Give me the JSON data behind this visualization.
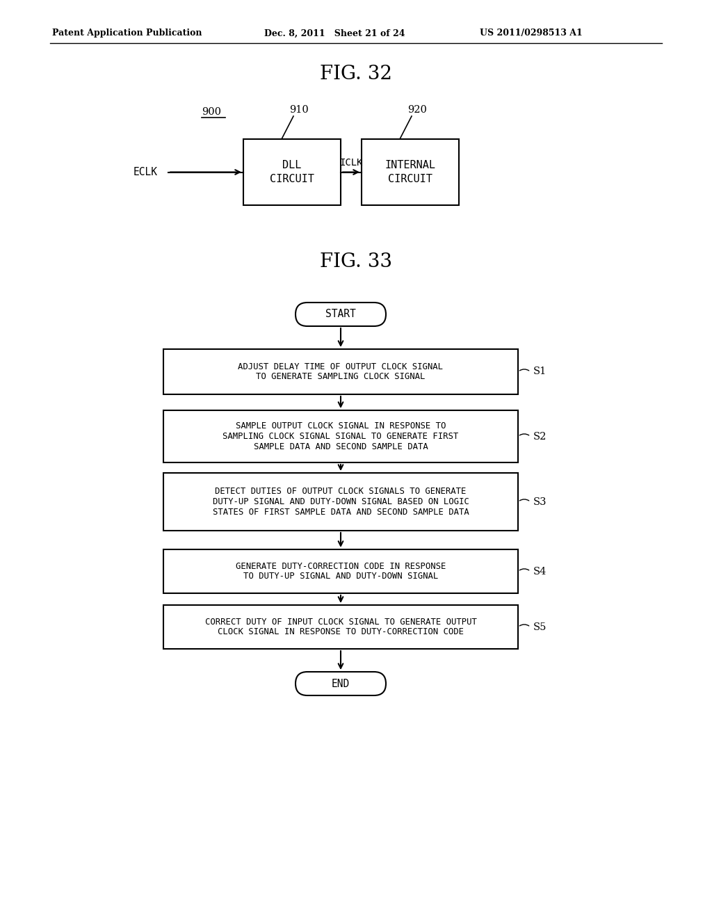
{
  "bg_color": "#ffffff",
  "header_left": "Patent Application Publication",
  "header_mid": "Dec. 8, 2011   Sheet 21 of 24",
  "header_right": "US 2011/0298513 A1",
  "fig32_title": "FIG. 32",
  "fig33_title": "FIG. 33",
  "fig32": {
    "label_900": "900",
    "label_910": "910",
    "label_920": "920",
    "box1_lines": [
      "DLL",
      "CIRCUIT"
    ],
    "box2_lines": [
      "INTERNAL",
      "CIRCUIT"
    ],
    "input_label": "ECLK",
    "mid_label": "ICLK"
  },
  "fig33": {
    "start_label": "START",
    "end_label": "END",
    "steps": [
      {
        "label": "S1",
        "lines": [
          "ADJUST DELAY TIME OF OUTPUT CLOCK SIGNAL",
          "TO GENERATE SAMPLING CLOCK SIGNAL"
        ]
      },
      {
        "label": "S2",
        "lines": [
          "SAMPLE OUTPUT CLOCK SIGNAL IN RESPONSE TO",
          "SAMPLING CLOCK SIGNAL SIGNAL TO GENERATE FIRST",
          "SAMPLE DATA AND SECOND SAMPLE DATA"
        ]
      },
      {
        "label": "S3",
        "lines": [
          "DETECT DUTIES OF OUTPUT CLOCK SIGNALS TO GENERATE",
          "DUTY-UP SIGNAL AND DUTY-DOWN SIGNAL BASED ON LOGIC",
          "STATES OF FIRST SAMPLE DATA AND SECOND SAMPLE DATA"
        ]
      },
      {
        "label": "S4",
        "lines": [
          "GENERATE DUTY-CORRECTION CODE IN RESPONSE",
          "TO DUTY-UP SIGNAL AND DUTY-DOWN SIGNAL"
        ]
      },
      {
        "label": "S5",
        "lines": [
          "CORRECT DUTY OF INPUT CLOCK SIGNAL TO GENERATE OUTPUT",
          "CLOCK SIGNAL IN RESPONSE TO DUTY-CORRECTION CODE"
        ]
      }
    ]
  }
}
